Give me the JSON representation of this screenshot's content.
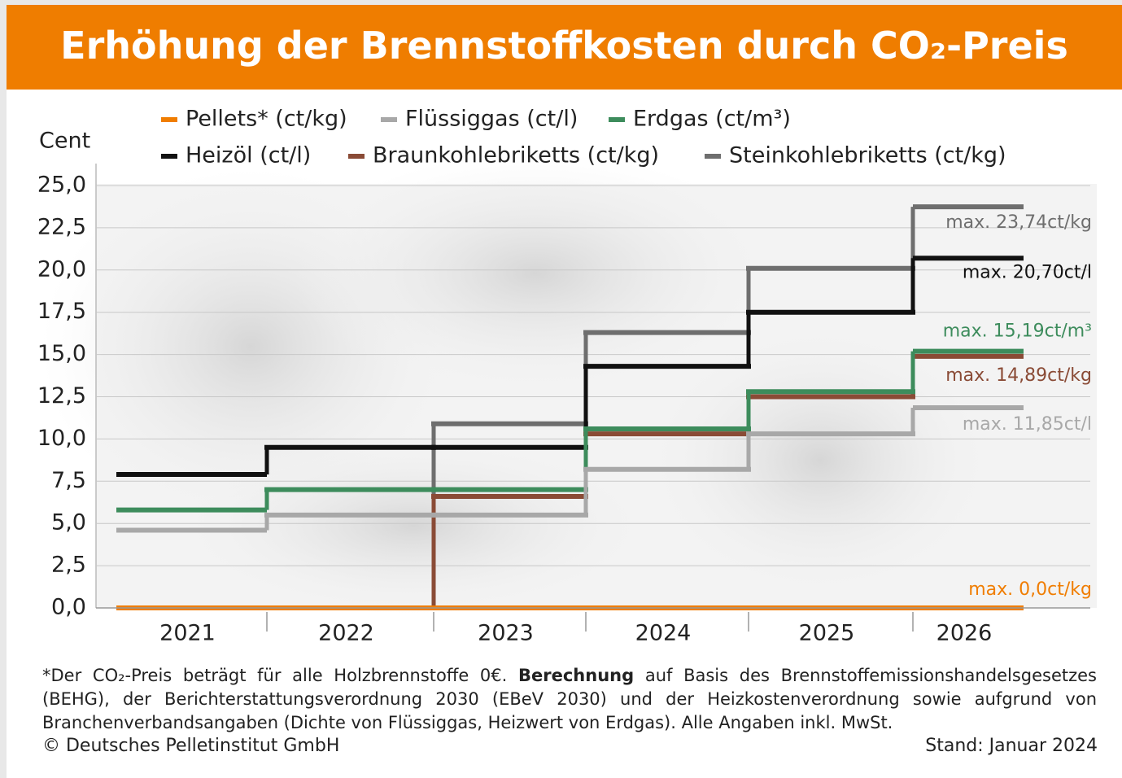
{
  "chart_data": {
    "type": "step",
    "title": "Erhöhung der Brennstoffkosten durch CO₂-Preis",
    "y_label": "Cent",
    "categories": [
      "2021",
      "2022",
      "2023",
      "2024",
      "2025",
      "2026"
    ],
    "ylim": [
      0,
      25
    ],
    "yticks": [
      {
        "value": 0,
        "label": "0,0"
      },
      {
        "value": 2.5,
        "label": "2,5"
      },
      {
        "value": 5,
        "label": "5,0"
      },
      {
        "value": 7.5,
        "label": "7,5"
      },
      {
        "value": 10,
        "label": "10,0"
      },
      {
        "value": 12.5,
        "label": "12,5"
      },
      {
        "value": 15,
        "label": "15,0"
      },
      {
        "value": 17.5,
        "label": "17,5"
      },
      {
        "value": 20,
        "label": "20,0"
      },
      {
        "value": 22.5,
        "label": "22,5"
      },
      {
        "value": 25,
        "label": "25,0"
      }
    ],
    "grid": true,
    "series": [
      {
        "name": "Pellets* (ct/kg)",
        "color": "#f07d00",
        "values": [
          0,
          0,
          0,
          0,
          0,
          0
        ],
        "value_labels": [
          null,
          null,
          null,
          null,
          null,
          "max. 0,0ct/kg"
        ]
      },
      {
        "name": "Flüssiggas (ct/l)",
        "color": "#a8a8a8",
        "values": [
          4.6,
          5.5,
          5.5,
          8.2,
          10.3,
          11.85
        ],
        "value_labels": [
          null,
          null,
          null,
          null,
          null,
          "max. 11,85ct/l"
        ]
      },
      {
        "name": "Erdgas (ct/m³)",
        "color": "#3d8c5c",
        "values": [
          5.8,
          7.0,
          7.0,
          10.6,
          12.8,
          15.19
        ],
        "value_labels": [
          null,
          null,
          null,
          null,
          null,
          "max. 15,19ct/m³"
        ]
      },
      {
        "name": "Heizöl (ct/l)",
        "color": "#111111",
        "values": [
          7.9,
          9.5,
          9.5,
          14.3,
          17.5,
          20.7
        ],
        "value_labels": [
          null,
          null,
          null,
          null,
          null,
          "max. 20,70ct/l"
        ]
      },
      {
        "name": "Braunkohlebriketts (ct/kg)",
        "color": "#8a4b36",
        "values": [
          0,
          0,
          6.6,
          10.3,
          12.5,
          14.89
        ],
        "value_labels": [
          null,
          null,
          null,
          null,
          null,
          "max. 14,89ct/kg"
        ]
      },
      {
        "name": "Steinkohlebriketts (ct/kg)",
        "color": "#6e6e6e",
        "values": [
          0,
          0,
          10.9,
          16.3,
          20.1,
          23.74
        ],
        "value_labels": [
          null,
          null,
          null,
          null,
          null,
          "max. 23,74ct/kg"
        ]
      }
    ],
    "footnote": [
      "*Der CO₂-Preis beträgt für alle Holzbrennstoffe 0€. ",
      "Berechnung",
      " auf Basis des Brennstoffemissionshandelsgesetzes (BEHG), der Berichterstattungsverordnung 2030 (EBeV 2030) und der Heizkostenverordnung sowie aufgrund von Branchenverbandsangaben (Dichte von Flüssiggas, Heizwert von Erdgas). Alle Angaben inkl. MwSt."
    ],
    "source": "© Deutsches Pelletinstitut GmbH",
    "date": "Stand: Januar 2024"
  }
}
